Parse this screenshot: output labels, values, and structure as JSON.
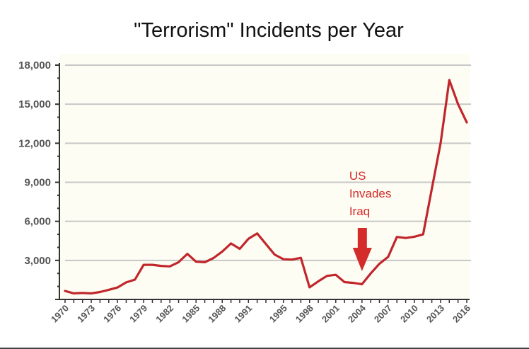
{
  "chart_data": {
    "type": "line",
    "title": "\"Terrorism\" Incidents per Year",
    "xlabel": "",
    "ylabel": "",
    "x": [
      1970,
      1971,
      1972,
      1973,
      1974,
      1975,
      1976,
      1977,
      1978,
      1979,
      1980,
      1981,
      1982,
      1983,
      1984,
      1985,
      1986,
      1987,
      1988,
      1989,
      1990,
      1991,
      1992,
      1994,
      1995,
      1996,
      1997,
      1998,
      1999,
      2000,
      2001,
      2002,
      2003,
      2004,
      2005,
      2006,
      2007,
      2008,
      2009,
      2010,
      2011,
      2012,
      2013,
      2014,
      2015,
      2016
    ],
    "series": [
      {
        "name": "Incidents",
        "color": "#c0262b",
        "values": [
          650,
          470,
          500,
          470,
          570,
          740,
          920,
          1310,
          1520,
          2660,
          2660,
          2580,
          2540,
          2860,
          3500,
          2900,
          2860,
          3180,
          3680,
          4300,
          3890,
          4660,
          5070,
          3450,
          3090,
          3060,
          3200,
          930,
          1390,
          1810,
          1890,
          1330,
          1270,
          1170,
          2000,
          2740,
          3280,
          4800,
          4720,
          4820,
          5000,
          8500,
          12000,
          16850,
          15000,
          13600
        ]
      }
    ],
    "xticks": [
      "1970",
      "1973",
      "1976",
      "1979",
      "1982",
      "1985",
      "1988",
      "1991",
      "1995",
      "1998",
      "2001",
      "2004",
      "2007",
      "2010",
      "2013",
      "2016"
    ],
    "yticks": [
      "3,000",
      "6,000",
      "9,000",
      "12,000",
      "15,000",
      "18,000"
    ],
    "ylim": [
      0,
      18000
    ],
    "grid": true,
    "annotations": [
      {
        "lines": [
          "US",
          "Invades",
          "Iraq"
        ],
        "x": 2004,
        "color": "#d42b2b",
        "icon": "down-arrow-icon"
      }
    ]
  }
}
